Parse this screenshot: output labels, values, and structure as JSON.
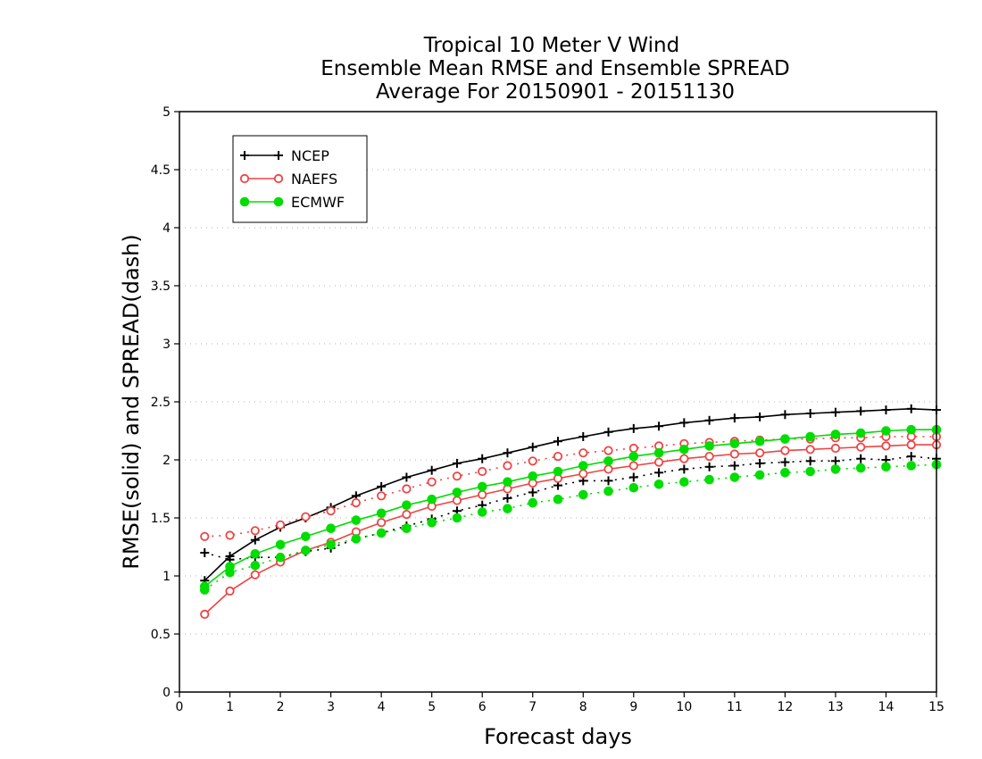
{
  "chart_data": {
    "type": "line",
    "title": [
      "Tropical 10 Meter V Wind",
      "Ensemble Mean RMSE and Ensemble SPREAD",
      "Average For 20150901 - 20151130"
    ],
    "xlabel": "Forecast days",
    "ylabel": "RMSE(solid) and SPREAD(dash)",
    "xlim": [
      0,
      15
    ],
    "ylim": [
      0,
      5
    ],
    "x_ticks": [
      "0",
      "1",
      "2",
      "3",
      "4",
      "5",
      "6",
      "7",
      "8",
      "9",
      "10",
      "11",
      "12",
      "13",
      "14",
      "15"
    ],
    "y_ticks": [
      "0",
      "0.5",
      "1",
      "1.5",
      "2",
      "2.5",
      "3",
      "3.5",
      "4",
      "4.5",
      "5"
    ],
    "grid": "horizontal dotted",
    "legend_position": "top-left",
    "x": [
      0.5,
      1,
      1.5,
      2,
      2.5,
      3,
      3.5,
      4,
      4.5,
      5,
      5.5,
      6,
      6.5,
      7,
      7.5,
      8,
      8.5,
      9,
      9.5,
      10,
      10.5,
      11,
      11.5,
      12,
      12.5,
      13,
      13.5,
      14,
      14.5,
      15
    ],
    "series": [
      {
        "name": "NCEP",
        "color": "#000000",
        "marker": "plus",
        "style": "solid",
        "values": [
          0.96,
          1.17,
          1.31,
          1.42,
          1.5,
          1.59,
          1.69,
          1.77,
          1.85,
          1.91,
          1.97,
          2.01,
          2.06,
          2.11,
          2.16,
          2.2,
          2.24,
          2.27,
          2.29,
          2.32,
          2.34,
          2.36,
          2.37,
          2.39,
          2.4,
          2.41,
          2.42,
          2.43,
          2.44,
          2.43
        ]
      },
      {
        "name": "NCEP",
        "color": "#000000",
        "marker": "plus",
        "style": "dotted",
        "values": [
          1.2,
          1.14,
          1.16,
          1.16,
          1.21,
          1.24,
          1.32,
          1.37,
          1.43,
          1.49,
          1.56,
          1.61,
          1.67,
          1.72,
          1.78,
          1.82,
          1.82,
          1.85,
          1.89,
          1.92,
          1.94,
          1.95,
          1.97,
          1.98,
          1.99,
          1.99,
          2.01,
          2.0,
          2.03,
          2.01
        ]
      },
      {
        "name": "NAEFS",
        "color": "#ee4444",
        "marker": "open-circle",
        "style": "solid",
        "values": [
          0.67,
          0.87,
          1.01,
          1.12,
          1.22,
          1.29,
          1.38,
          1.46,
          1.53,
          1.6,
          1.65,
          1.7,
          1.75,
          1.8,
          1.84,
          1.88,
          1.92,
          1.95,
          1.98,
          2.01,
          2.03,
          2.05,
          2.06,
          2.08,
          2.09,
          2.1,
          2.11,
          2.12,
          2.13,
          2.13
        ]
      },
      {
        "name": "NAEFS",
        "color": "#ee4444",
        "marker": "open-circle",
        "style": "dotted",
        "values": [
          1.34,
          1.35,
          1.39,
          1.44,
          1.51,
          1.56,
          1.63,
          1.69,
          1.75,
          1.81,
          1.86,
          1.9,
          1.95,
          1.99,
          2.03,
          2.06,
          2.08,
          2.1,
          2.12,
          2.14,
          2.15,
          2.16,
          2.17,
          2.18,
          2.18,
          2.19,
          2.19,
          2.2,
          2.2,
          2.2
        ]
      },
      {
        "name": "ECMWF",
        "color": "#00dd00",
        "marker": "filled-circle",
        "style": "solid",
        "values": [
          0.91,
          1.08,
          1.19,
          1.27,
          1.34,
          1.41,
          1.48,
          1.54,
          1.61,
          1.66,
          1.72,
          1.77,
          1.81,
          1.86,
          1.9,
          1.95,
          1.99,
          2.03,
          2.06,
          2.09,
          2.12,
          2.14,
          2.16,
          2.18,
          2.2,
          2.22,
          2.23,
          2.25,
          2.26,
          2.26
        ]
      },
      {
        "name": "ECMWF",
        "color": "#00dd00",
        "marker": "filled-circle",
        "style": "dotted",
        "values": [
          0.88,
          1.03,
          1.09,
          1.16,
          1.22,
          1.27,
          1.32,
          1.37,
          1.41,
          1.46,
          1.5,
          1.55,
          1.58,
          1.63,
          1.66,
          1.7,
          1.73,
          1.76,
          1.79,
          1.81,
          1.83,
          1.85,
          1.87,
          1.89,
          1.9,
          1.92,
          1.93,
          1.94,
          1.95,
          1.96
        ]
      }
    ],
    "legend": [
      {
        "label": "NCEP",
        "color": "#000000",
        "marker": "plus"
      },
      {
        "label": "NAEFS",
        "color": "#ee4444",
        "marker": "open-circle"
      },
      {
        "label": "ECMWF",
        "color": "#00dd00",
        "marker": "filled-circle"
      }
    ]
  }
}
